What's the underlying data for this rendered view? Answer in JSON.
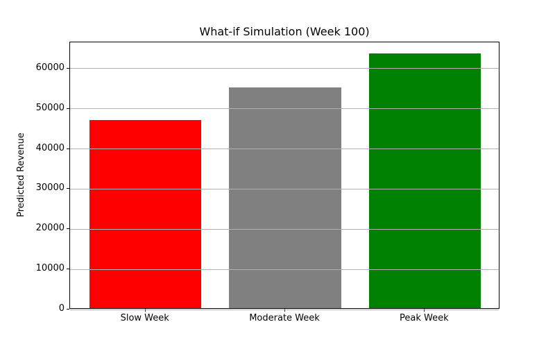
{
  "chart_data": {
    "type": "bar",
    "title": "What-if Simulation (Week 100)",
    "ylabel": "Predicted Revenue",
    "xlabel": "",
    "categories": [
      "Slow Week",
      "Moderate Week",
      "Peak Week"
    ],
    "values": [
      46900,
      55000,
      63400
    ],
    "bar_colors": [
      "#ff0000",
      "#808080",
      "#008000"
    ],
    "yticks": [
      0,
      10000,
      20000,
      30000,
      40000,
      50000,
      60000
    ],
    "ylim": [
      0,
      66570
    ],
    "grid": "horizontal",
    "grid_color": "#b0b0b0",
    "grid_above_bars": true,
    "axis_color": "#000000",
    "background": "#ffffff",
    "legend": "none"
  }
}
